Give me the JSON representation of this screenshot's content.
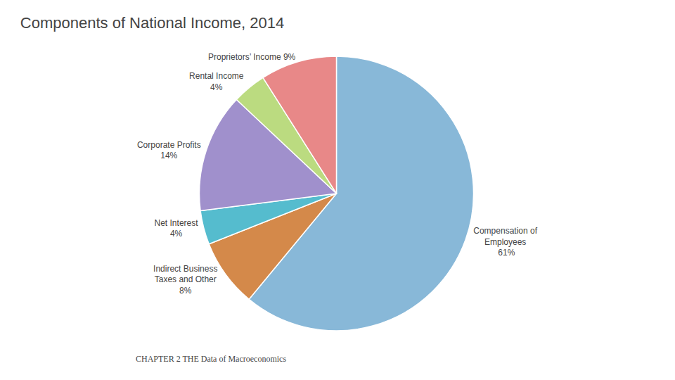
{
  "chart_data": {
    "type": "pie",
    "title": "Components of National Income, 2014",
    "categories": [
      "Compensation of\nEmployees\n 61%",
      "Indirect Business\nTaxes and Other\n8%",
      "Net Interest\n4%",
      "Corporate Profits\n14%",
      "Rental Income\n4%",
      "Proprietors’ Income 9%"
    ],
    "values": [
      61,
      8,
      4,
      14,
      4,
      9
    ],
    "colors": [
      "#88B8D8",
      "#D4894A",
      "#55BCCE",
      "#A090CC",
      "#BBDB80",
      "#E88888"
    ],
    "annotations": [
      "CHAPTER 2 THE Data of Macroeconomics"
    ],
    "legend": "none"
  }
}
